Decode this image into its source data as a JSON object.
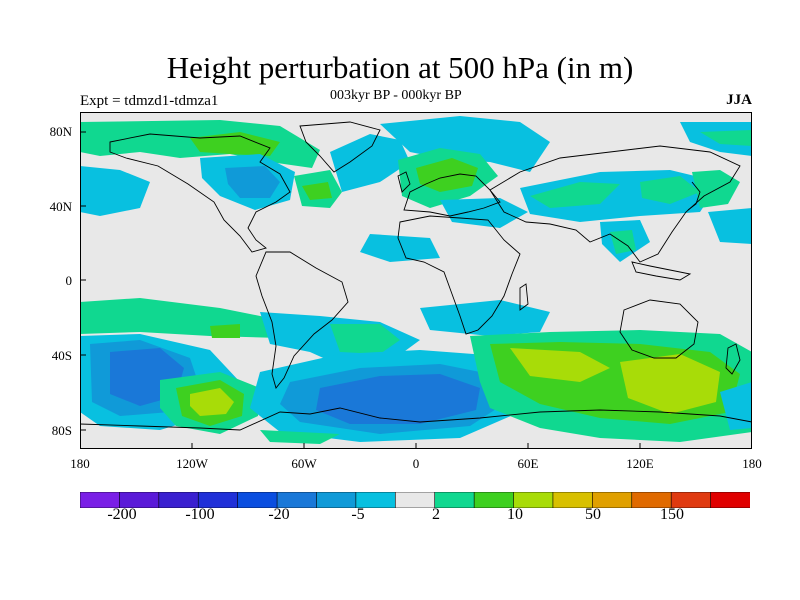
{
  "title": "Height perturbation at 500 hPa (in m)",
  "subtitle": "003kyr BP - 000kyr BP",
  "left_label": "Expt = tdmzd1-tdmza1",
  "right_label": "JJA",
  "lat_labels": [
    "80N",
    "40N",
    "0",
    "40S",
    "80S"
  ],
  "lon_labels": [
    "180",
    "120W",
    "60W",
    "0",
    "60E",
    "120E",
    "180"
  ],
  "colorbar": {
    "colors": [
      "#7a1fe6",
      "#5a1ad8",
      "#3a20d0",
      "#2030d8",
      "#0a4ee0",
      "#1a78d8",
      "#109ad8",
      "#08c0e0",
      "#e8e8e8",
      "#10d890",
      "#3ed020",
      "#a8dc08",
      "#d8c000",
      "#e0a000",
      "#e06a00",
      "#e03a10",
      "#e00000"
    ],
    "labels": [
      "-200",
      "-100",
      "-20",
      "-5",
      "2",
      "10",
      "50",
      "150"
    ]
  },
  "palette": {
    "background": "#e8e8e8",
    "neg_light": "#08c0e0",
    "neg_mid": "#109ad8",
    "neg_strong": "#1a78d8",
    "pos_light": "#10d890",
    "pos_mid": "#3ed020",
    "pos_strong": "#a8dc08"
  }
}
